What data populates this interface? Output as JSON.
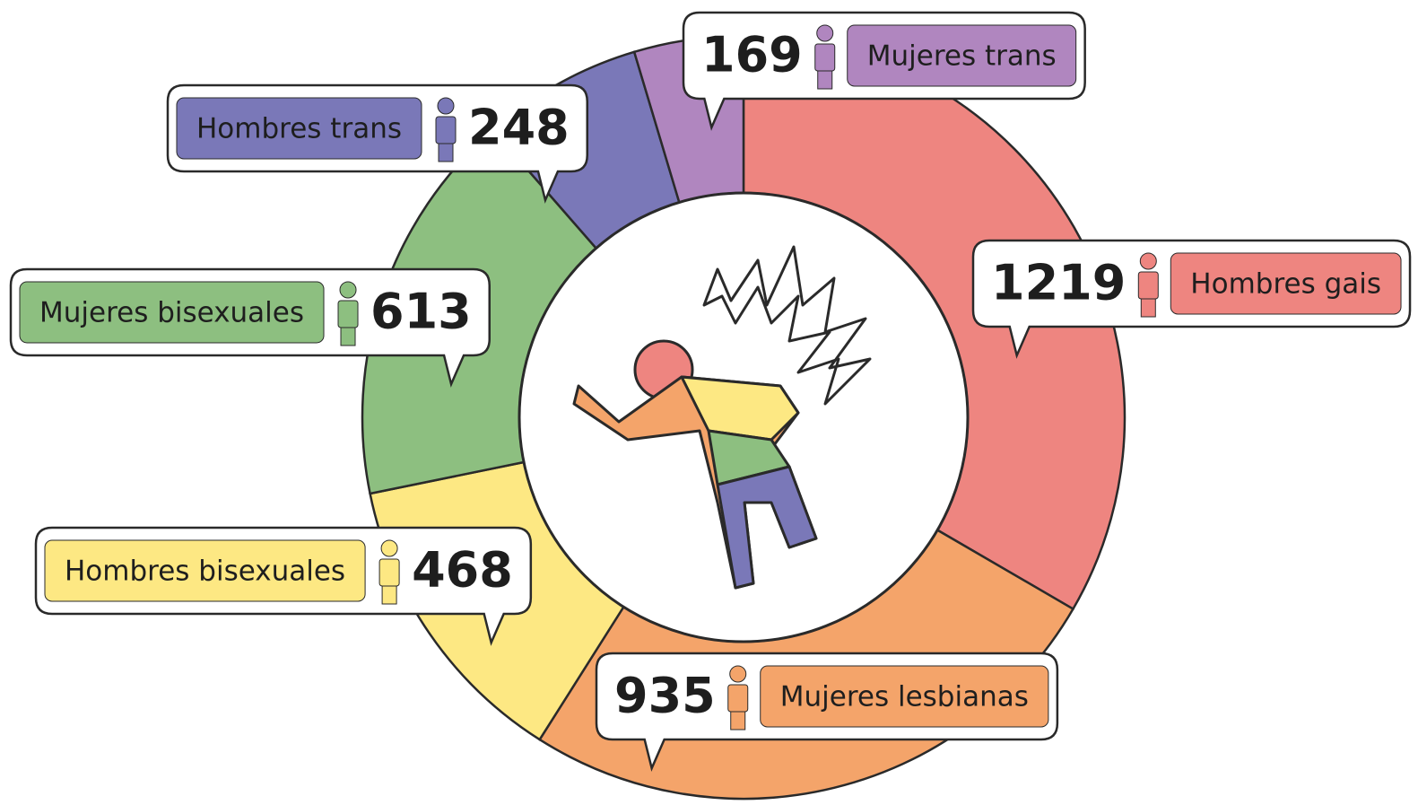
{
  "chart_data": {
    "type": "donut",
    "categories": [
      "Hombres gais",
      "Mujeres lesbianas",
      "Hombres bisexuales",
      "Mujeres bisexuales",
      "Hombres trans",
      "Mujeres trans"
    ],
    "values": [
      1219,
      935,
      468,
      613,
      248,
      169
    ],
    "colors": [
      "#ee8580",
      "#f4a46a",
      "#fde883",
      "#8dbf80",
      "#7a78b8",
      "#b086bf"
    ]
  }
}
